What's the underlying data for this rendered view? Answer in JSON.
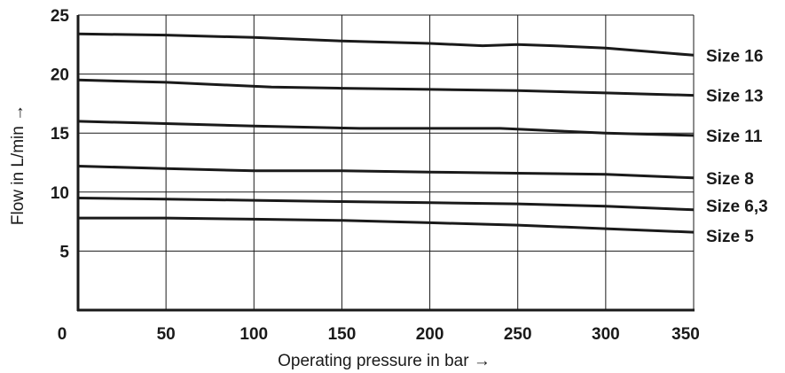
{
  "chart_data": {
    "type": "line",
    "xlabel": "Operating pressure in bar →",
    "ylabel": "Flow in L/min →",
    "xlim": [
      0,
      350
    ],
    "ylim": [
      0,
      25
    ],
    "x_ticks": [
      0,
      50,
      100,
      150,
      200,
      250,
      300,
      350
    ],
    "y_ticks": [
      5,
      10,
      15,
      20,
      25
    ],
    "grid": true,
    "legend": "labels at right end of each line",
    "colors": {
      "line": "#1a1a1a",
      "grid": "#1a1a1a",
      "background": "#ffffff"
    },
    "series": [
      {
        "name": "Size 16",
        "points": [
          [
            0,
            23.4
          ],
          [
            50,
            23.3
          ],
          [
            100,
            23.1
          ],
          [
            150,
            22.8
          ],
          [
            200,
            22.6
          ],
          [
            230,
            22.4
          ],
          [
            250,
            22.5
          ],
          [
            270,
            22.4
          ],
          [
            300,
            22.2
          ],
          [
            350,
            21.6
          ]
        ]
      },
      {
        "name": "Size 13",
        "points": [
          [
            0,
            19.5
          ],
          [
            50,
            19.3
          ],
          [
            110,
            18.9
          ],
          [
            150,
            18.8
          ],
          [
            200,
            18.7
          ],
          [
            250,
            18.6
          ],
          [
            300,
            18.4
          ],
          [
            350,
            18.2
          ]
        ]
      },
      {
        "name": "Size 11",
        "points": [
          [
            0,
            16.0
          ],
          [
            50,
            15.8
          ],
          [
            100,
            15.6
          ],
          [
            160,
            15.4
          ],
          [
            200,
            15.4
          ],
          [
            240,
            15.4
          ],
          [
            300,
            15.0
          ],
          [
            350,
            14.8
          ]
        ]
      },
      {
        "name": "Size 8",
        "points": [
          [
            0,
            12.2
          ],
          [
            50,
            12.0
          ],
          [
            100,
            11.8
          ],
          [
            150,
            11.8
          ],
          [
            200,
            11.7
          ],
          [
            250,
            11.6
          ],
          [
            300,
            11.5
          ],
          [
            350,
            11.2
          ]
        ]
      },
      {
        "name": "Size 6,3",
        "points": [
          [
            0,
            9.5
          ],
          [
            50,
            9.4
          ],
          [
            100,
            9.3
          ],
          [
            150,
            9.2
          ],
          [
            200,
            9.1
          ],
          [
            250,
            9.0
          ],
          [
            300,
            8.8
          ],
          [
            350,
            8.5
          ]
        ]
      },
      {
        "name": "Size 5",
        "points": [
          [
            0,
            7.8
          ],
          [
            50,
            7.8
          ],
          [
            100,
            7.7
          ],
          [
            150,
            7.6
          ],
          [
            200,
            7.4
          ],
          [
            250,
            7.2
          ],
          [
            300,
            6.9
          ],
          [
            350,
            6.6
          ]
        ]
      }
    ]
  }
}
